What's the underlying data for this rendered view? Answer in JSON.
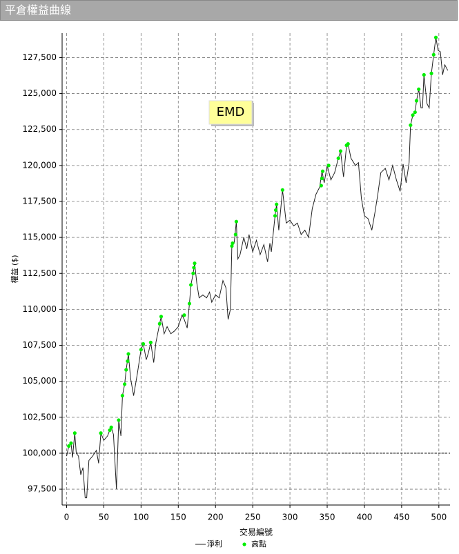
{
  "chart_data": {
    "type": "line",
    "title": "平倉權益曲線",
    "x_label": "交易編號",
    "y_label": "權益 ($)",
    "annotation": "EMD",
    "xlim": [
      -6,
      515
    ],
    "ylim": [
      96400,
      129200
    ],
    "xticks": [
      0,
      50,
      100,
      150,
      200,
      250,
      300,
      350,
      400,
      450,
      500
    ],
    "yticks": [
      {
        "value": 97500,
        "label": "97,500"
      },
      {
        "value": 100000,
        "label": "100,000"
      },
      {
        "value": 102500,
        "label": "102,500"
      },
      {
        "value": 105000,
        "label": "105,000"
      },
      {
        "value": 107500,
        "label": "107,500"
      },
      {
        "value": 110000,
        "label": "110,000"
      },
      {
        "value": 112500,
        "label": "112,500"
      },
      {
        "value": 115000,
        "label": "115,000"
      },
      {
        "value": 117500,
        "label": "117,500"
      },
      {
        "value": 120000,
        "label": "120,000"
      },
      {
        "value": 122500,
        "label": "122,500"
      },
      {
        "value": 125000,
        "label": "125,000"
      },
      {
        "value": 127500,
        "label": "127,500"
      }
    ],
    "grid": true,
    "baseline": 100000,
    "series": [
      {
        "name": "淨利",
        "color": "#222222",
        "x": [
          0,
          3,
          6,
          8,
          11,
          13,
          16,
          19,
          22,
          25,
          27,
          30,
          35,
          40,
          43,
          46,
          50,
          55,
          58,
          60,
          63,
          67,
          70,
          73,
          75,
          78,
          80,
          83,
          86,
          90,
          95,
          100,
          103,
          107,
          110,
          113,
          117,
          120,
          125,
          127,
          131,
          135,
          140,
          145,
          150,
          155,
          158,
          162,
          165,
          167,
          170,
          172,
          175,
          178,
          183,
          188,
          192,
          195,
          200,
          205,
          210,
          214,
          217,
          220,
          222,
          225,
          228,
          230,
          233,
          238,
          242,
          245,
          250,
          255,
          260,
          265,
          270,
          273,
          275,
          280,
          282,
          285,
          290,
          295,
          300,
          305,
          310,
          315,
          320,
          325,
          330,
          335,
          340,
          343,
          346,
          350,
          355,
          360,
          365,
          368,
          372,
          376,
          378,
          382,
          388,
          392,
          396,
          400,
          405,
          410,
          414,
          418,
          422,
          428,
          433,
          438,
          443,
          448,
          452,
          456,
          460,
          462,
          465,
          468,
          470,
          473,
          476,
          478,
          480,
          484,
          487,
          490,
          493,
          496,
          499,
          502,
          505,
          508,
          512
        ],
        "values": [
          99800,
          100500,
          100700,
          99700,
          101400,
          100000,
          99800,
          98500,
          99000,
          96900,
          96900,
          99500,
          99800,
          100200,
          99300,
          101400,
          100900,
          101200,
          101600,
          101800,
          101300,
          97500,
          102300,
          101200,
          104000,
          104800,
          105800,
          106900,
          105200,
          104000,
          105500,
          107200,
          107600,
          106500,
          107000,
          107700,
          106300,
          107700,
          109000,
          109500,
          108300,
          108800,
          108300,
          108500,
          108800,
          109600,
          109300,
          108700,
          110400,
          111700,
          112500,
          113200,
          111800,
          110800,
          111000,
          110800,
          111200,
          110500,
          111000,
          110800,
          112000,
          111500,
          109300,
          110000,
          114400,
          114600,
          116100,
          113500,
          113800,
          115000,
          114200,
          115200,
          114000,
          114800,
          113800,
          114500,
          113300,
          114600,
          114000,
          116500,
          117300,
          115500,
          118300,
          116000,
          116200,
          115800,
          116000,
          115200,
          115500,
          115000,
          117000,
          118000,
          118500,
          119600,
          118800,
          120000,
          119000,
          119500,
          120500,
          121000,
          119200,
          121400,
          121500,
          120500,
          120000,
          120200,
          117700,
          116500,
          116300,
          115500,
          116700,
          118000,
          119500,
          119800,
          119000,
          120000,
          119000,
          118200,
          120100,
          118800,
          120200,
          122800,
          123500,
          123700,
          124500,
          125300,
          124000,
          124000,
          126300,
          124300,
          124000,
          126400,
          127700,
          128900,
          128000,
          127900,
          126300,
          127000,
          126600
        ]
      },
      {
        "name": "高點",
        "type": "scatter",
        "color": "#00ee00",
        "x": [
          3,
          6,
          11,
          46,
          58,
          60,
          70,
          75,
          78,
          80,
          82,
          83,
          100,
          103,
          113,
          125,
          127,
          158,
          165,
          167,
          170,
          171,
          172,
          222,
          223,
          227,
          228,
          280,
          281,
          282,
          290,
          342,
          343,
          344,
          352,
          365,
          368,
          376,
          378,
          462,
          465,
          468,
          470,
          473,
          480,
          490,
          493,
          496
        ],
        "values": [
          100500,
          100700,
          101400,
          101400,
          101600,
          101800,
          102300,
          104000,
          104800,
          105800,
          106400,
          106900,
          107200,
          107600,
          107700,
          109000,
          109500,
          109600,
          110400,
          111700,
          112500,
          112900,
          113200,
          114400,
          114600,
          115200,
          116100,
          116500,
          116900,
          117300,
          118300,
          118600,
          119100,
          119600,
          120000,
          120500,
          121000,
          121400,
          121500,
          122800,
          123500,
          123700,
          124500,
          125300,
          126300,
          126400,
          127700,
          128900
        ]
      }
    ]
  }
}
